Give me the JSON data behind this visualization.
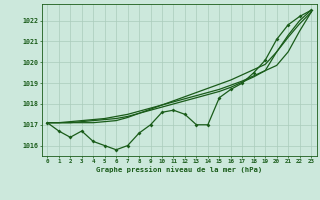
{
  "x": [
    0,
    1,
    2,
    3,
    4,
    5,
    6,
    7,
    8,
    9,
    10,
    11,
    12,
    13,
    14,
    15,
    16,
    17,
    18,
    19,
    20,
    21,
    22,
    23
  ],
  "line_main": [
    1017.1,
    1016.7,
    1016.4,
    1016.7,
    1016.2,
    1016.0,
    1015.8,
    1016.0,
    1016.6,
    1017.0,
    1017.6,
    1017.7,
    1017.5,
    1017.0,
    1017.0,
    1018.3,
    1018.7,
    1019.0,
    1019.5,
    1020.1,
    1021.1,
    1021.8,
    1022.2,
    1022.5
  ],
  "line_trend1": [
    1017.1,
    1017.1,
    1017.15,
    1017.2,
    1017.25,
    1017.3,
    1017.4,
    1017.5,
    1017.65,
    1017.8,
    1017.95,
    1018.1,
    1018.25,
    1018.4,
    1018.55,
    1018.7,
    1018.9,
    1019.1,
    1019.35,
    1019.6,
    1019.85,
    1020.5,
    1021.5,
    1022.4
  ],
  "line_trend2": [
    1017.1,
    1017.1,
    1017.1,
    1017.15,
    1017.2,
    1017.25,
    1017.3,
    1017.4,
    1017.55,
    1017.7,
    1017.85,
    1018.0,
    1018.15,
    1018.3,
    1018.45,
    1018.6,
    1018.8,
    1019.05,
    1019.3,
    1019.6,
    1020.5,
    1021.3,
    1022.0,
    1022.5
  ],
  "line_trend3": [
    1017.1,
    1017.1,
    1017.1,
    1017.1,
    1017.1,
    1017.15,
    1017.2,
    1017.35,
    1017.55,
    1017.75,
    1017.95,
    1018.15,
    1018.35,
    1018.55,
    1018.75,
    1018.95,
    1019.15,
    1019.4,
    1019.65,
    1019.9,
    1020.5,
    1021.2,
    1021.85,
    1022.4
  ],
  "line_color": "#1a5c1a",
  "bg_color": "#cce8dc",
  "grid_color": "#aaccbb",
  "xlabel": "Graphe pression niveau de la mer (hPa)",
  "ylim": [
    1015.5,
    1022.8
  ],
  "yticks": [
    1016,
    1017,
    1018,
    1019,
    1020,
    1021,
    1022
  ],
  "xticks": [
    0,
    1,
    2,
    3,
    4,
    5,
    6,
    7,
    8,
    9,
    10,
    11,
    12,
    13,
    14,
    15,
    16,
    17,
    18,
    19,
    20,
    21,
    22,
    23
  ]
}
